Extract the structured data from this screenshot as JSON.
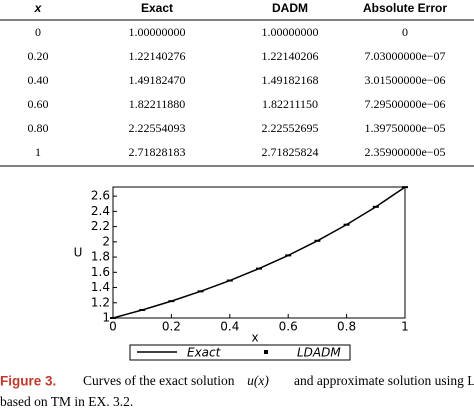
{
  "table": {
    "header": [
      "x",
      "Exact",
      "DADM",
      "Absolute Error"
    ],
    "rows": [
      [
        "0",
        "1.00000000",
        "1.00000000",
        "0"
      ],
      [
        "0.20",
        "1.22140276",
        "1.22140206",
        "7.03000000e−07"
      ],
      [
        "0.40",
        "1.49182470",
        "1.49182168",
        "3.01500000e−06"
      ],
      [
        "0.60",
        "1.82211880",
        "1.82211150",
        "7.29500000e−06"
      ],
      [
        "0.80",
        "2.22554093",
        "2.22552695",
        "1.39750000e−05"
      ],
      [
        "1",
        "2.71828183",
        "2.71825824",
        "2.35900000e−05"
      ]
    ]
  },
  "chart_data": {
    "type": "line",
    "xlabel": "x",
    "ylabel": "U",
    "x": [
      0,
      0.1,
      0.2,
      0.3,
      0.4,
      0.5,
      0.6,
      0.7,
      0.8,
      0.9,
      1
    ],
    "series": [
      {
        "name": "Exact",
        "color": "#000000",
        "style": "line",
        "values": [
          1,
          1.1052,
          1.2214,
          1.3499,
          1.4918,
          1.6487,
          1.8221,
          2.0138,
          2.2255,
          2.4596,
          2.7183
        ]
      },
      {
        "name": "LDADM",
        "color": "#000000",
        "style": "marker",
        "values": [
          1,
          1.1052,
          1.2214,
          1.3499,
          1.4918,
          1.6487,
          1.8221,
          2.0138,
          2.2255,
          2.4596,
          2.7183
        ]
      }
    ],
    "xlim": [
      0,
      1
    ],
    "xticks": [
      0,
      0.2,
      0.4,
      0.6,
      0.8,
      1
    ],
    "ylim": [
      1,
      2.72
    ],
    "yticks": [
      1,
      1.2,
      1.4,
      1.6,
      1.8,
      2,
      2.2,
      2.4,
      2.6
    ]
  },
  "caption": {
    "label": "Figure 3.",
    "text1": "Curves of the exact solution",
    "math": "u(x)",
    "text2": "and approximate solution using LDADM",
    "text3": "based on TM in EX. 3.2."
  }
}
